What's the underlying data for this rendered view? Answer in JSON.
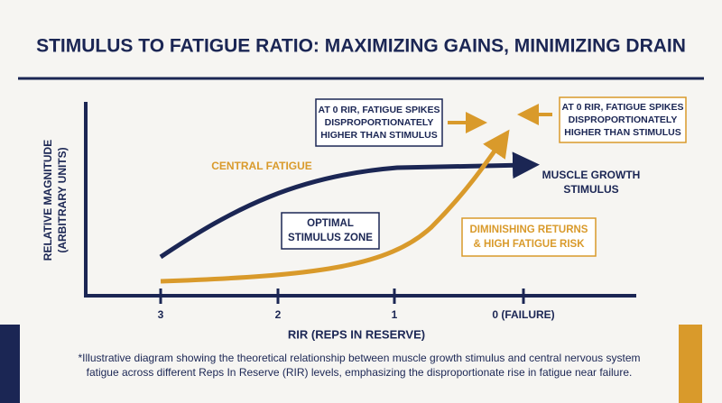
{
  "header": {
    "title": "STIMULUS TO FATIGUE RATIO: MAXIMIZING GAINS, MINIMIZING DRAIN"
  },
  "axes": {
    "y_label": [
      "RELATIVE MAGNITUDE",
      "(ARBITRARY UNITS)"
    ],
    "x_label": "RIR (REPS IN RESERVE)",
    "x_ticks": [
      "3",
      "2",
      "1",
      "0 (FAILURE)"
    ]
  },
  "annotations": {
    "spike_left": [
      "AT 0 RIR, FATIGUE SPIKES",
      "DISPROPORTIONATELY",
      "HIGHER THAN STIMULUS"
    ],
    "spike_right": [
      "AT 0 RIR, FATIGUE SPIKES",
      "DISPROPORTIONATELY",
      "HIGHER THAN STIMULUS"
    ],
    "central_fatigue": "CENTRAL FATIGUE",
    "muscle_growth": [
      "MUSCLE GROWTH",
      "STIMULUS"
    ],
    "optimal_zone": [
      "OPTIMAL",
      "STIMULUS ZONE"
    ],
    "diminishing": [
      "DIMINISHING RETURNS",
      "& HIGH FATIGUE RISK"
    ]
  },
  "footnote": [
    "*Illustrative diagram showing the theoretical relationship between muscle growth stimulus and central nervous system",
    "fatigue across different Reps In Reserve (RIR) levels, emphasizing the disproportionate rise in fatigue near failure."
  ]
}
